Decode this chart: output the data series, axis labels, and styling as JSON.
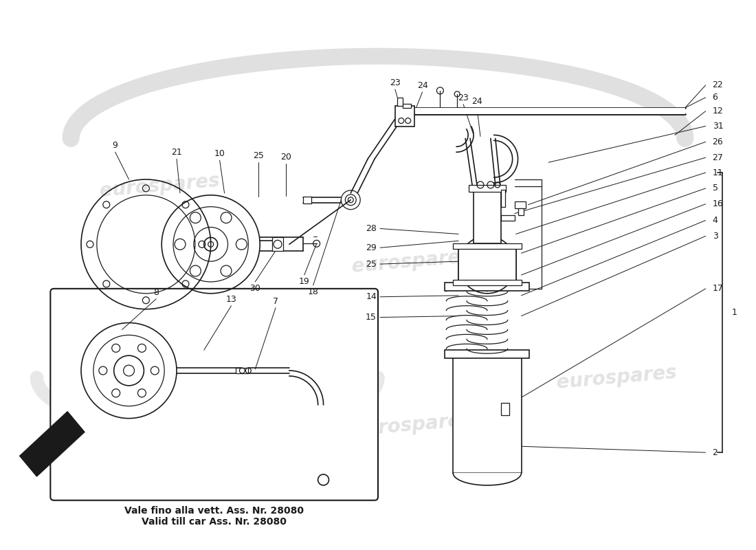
{
  "bg_color": "#ffffff",
  "line_color": "#1a1a1a",
  "watermark_color": "#d0d0d0",
  "watermark_text": "eurospares",
  "caption_line1": "Vale fino alla vett. Ass. Nr. 28080",
  "caption_line2": "Valid till car Ass. Nr. 28080",
  "caption_fontsize": 10,
  "label_fontsize": 9,
  "figsize": [
    11.0,
    8.0
  ],
  "dpi": 100
}
